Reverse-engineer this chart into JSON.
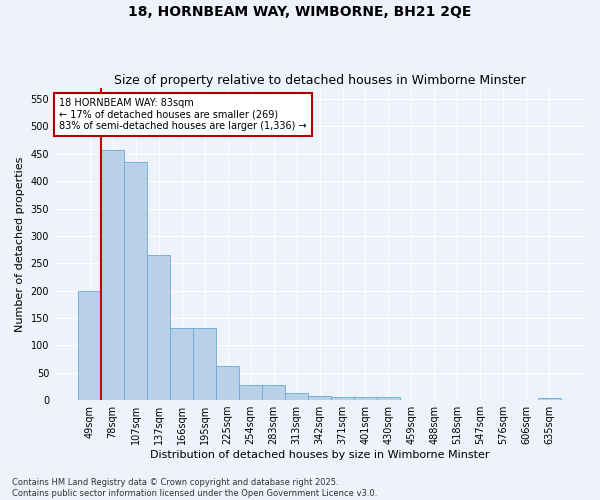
{
  "title": "18, HORNBEAM WAY, WIMBORNE, BH21 2QE",
  "subtitle": "Size of property relative to detached houses in Wimborne Minster",
  "xlabel": "Distribution of detached houses by size in Wimborne Minster",
  "ylabel": "Number of detached properties",
  "categories": [
    "49sqm",
    "78sqm",
    "107sqm",
    "137sqm",
    "166sqm",
    "195sqm",
    "225sqm",
    "254sqm",
    "283sqm",
    "313sqm",
    "342sqm",
    "371sqm",
    "401sqm",
    "430sqm",
    "459sqm",
    "488sqm",
    "518sqm",
    "547sqm",
    "576sqm",
    "606sqm",
    "635sqm"
  ],
  "values": [
    200,
    457,
    435,
    265,
    132,
    132,
    62,
    28,
    28,
    13,
    8,
    5,
    5,
    5,
    1,
    0,
    0,
    0,
    0,
    0,
    3
  ],
  "bar_color": "#b8d0e8",
  "bar_edge_color": "#6aaad4",
  "property_line_x": 0.5,
  "property_line_color": "#cc0000",
  "annotation_line1": "18 HORNBEAM WAY: 83sqm",
  "annotation_line2": "← 17% of detached houses are smaller (269)",
  "annotation_line3": "83% of semi-detached houses are larger (1,336) →",
  "annotation_box_color": "#ffffff",
  "annotation_box_edge_color": "#aa0000",
  "ylim": [
    0,
    570
  ],
  "yticks": [
    0,
    50,
    100,
    150,
    200,
    250,
    300,
    350,
    400,
    450,
    500,
    550
  ],
  "background_color": "#eef2fa",
  "grid_color": "#ffffff",
  "footnote": "Contains HM Land Registry data © Crown copyright and database right 2025.\nContains public sector information licensed under the Open Government Licence v3.0.",
  "title_fontsize": 10,
  "subtitle_fontsize": 9,
  "xlabel_fontsize": 8,
  "ylabel_fontsize": 8,
  "tick_fontsize": 7,
  "annotation_fontsize": 7,
  "footnote_fontsize": 6
}
